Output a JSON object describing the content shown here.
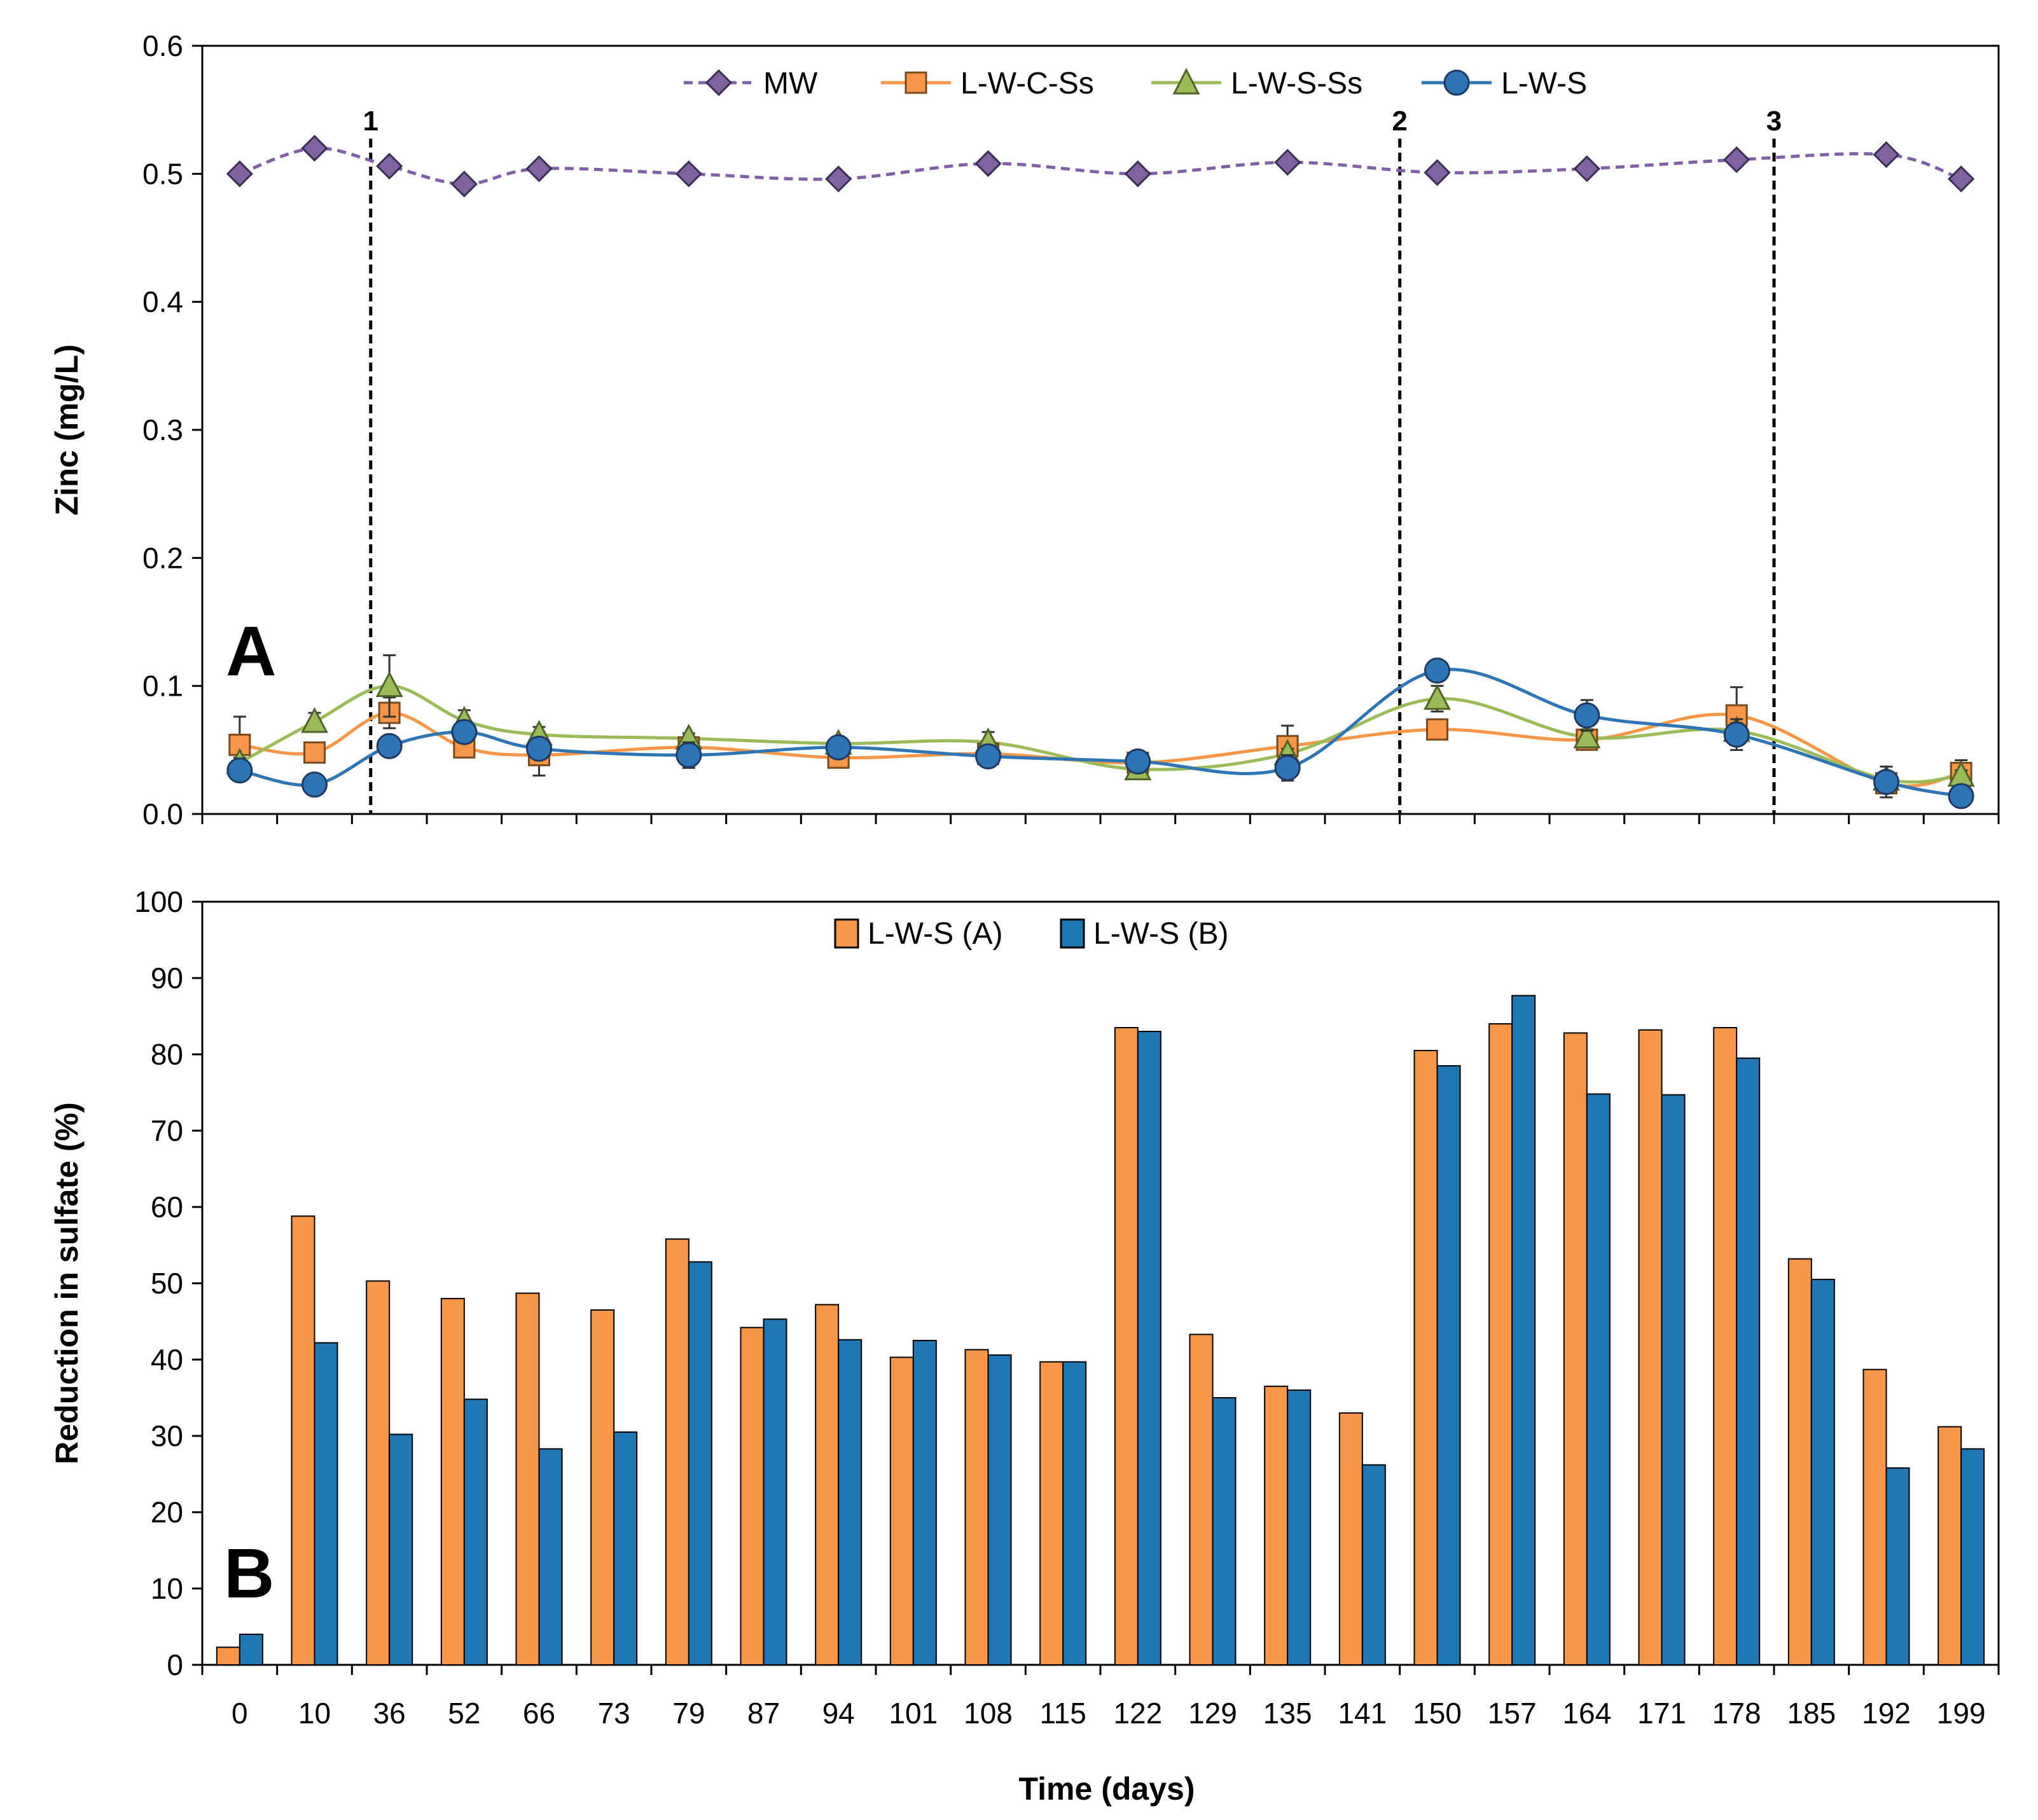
{
  "chart_data": [
    {
      "panel": "A",
      "type": "line",
      "xlabel": "",
      "ylabel": "Zinc (mg/L)",
      "ylim": [
        0,
        0.6
      ],
      "yticks": [
        "0.0",
        "0.1",
        "0.2",
        "0.3",
        "0.4",
        "0.5",
        "0.6"
      ],
      "categories": [
        "0",
        "10",
        "36",
        "52",
        "66",
        "73",
        "79",
        "87",
        "94",
        "101",
        "108",
        "115",
        "122",
        "129",
        "135",
        "141",
        "150",
        "157",
        "164",
        "171",
        "178",
        "185",
        "192",
        "199"
      ],
      "series": [
        {
          "name": "MW",
          "color": "#7f5fa5",
          "marker": "diamond",
          "dashed": true,
          "x": [
            0,
            1,
            2,
            3,
            4,
            6,
            8,
            10,
            12,
            14,
            16,
            18,
            20,
            22,
            23
          ],
          "values": [
            0.5,
            0.52,
            0.506,
            0.492,
            0.504,
            0.5,
            0.496,
            0.508,
            0.5,
            0.509,
            0.501,
            0.504,
            0.511,
            0.515,
            0.496
          ]
        },
        {
          "name": "L-W-C-Ss",
          "color": "#f79646",
          "marker": "square",
          "dashed": false,
          "x": [
            0,
            1,
            2,
            3,
            4,
            6,
            8,
            10,
            12,
            14,
            16,
            18,
            20,
            22,
            23
          ],
          "values": [
            0.054,
            0.048,
            0.079,
            0.052,
            0.046,
            0.052,
            0.044,
            0.047,
            0.04,
            0.053,
            0.066,
            0.058,
            0.077,
            0.024,
            0.032
          ],
          "errors": [
            0.022,
            0.004,
            0.012,
            0.005,
            0.016,
            0.004,
            0.004,
            0.004,
            0.003,
            0.016,
            0.006,
            0.005,
            0.022,
            0.005,
            0.01
          ]
        },
        {
          "name": "L-W-S-Ss",
          "color": "#9bbb59",
          "marker": "triangle",
          "dashed": false,
          "x": [
            0,
            1,
            2,
            3,
            4,
            6,
            8,
            10,
            12,
            14,
            16,
            18,
            20,
            22,
            23
          ],
          "values": [
            0.04,
            0.072,
            0.1,
            0.073,
            0.062,
            0.059,
            0.055,
            0.056,
            0.035,
            0.047,
            0.09,
            0.06,
            0.065,
            0.027,
            0.03
          ],
          "errors": [
            0.004,
            0.007,
            0.024,
            0.008,
            0.006,
            0.004,
            0.004,
            0.008,
            0.004,
            0.004,
            0.01,
            0.006,
            0.006,
            0.004,
            0.004
          ]
        },
        {
          "name": "L-W-S",
          "color": "#2e75b6",
          "marker": "circle",
          "dashed": false,
          "x": [
            0,
            1,
            2,
            3,
            4,
            6,
            8,
            10,
            12,
            14,
            16,
            18,
            20,
            22,
            23
          ],
          "values": [
            0.034,
            0.023,
            0.053,
            0.064,
            0.051,
            0.046,
            0.052,
            0.045,
            0.041,
            0.036,
            0.112,
            0.077,
            0.062,
            0.025,
            0.014
          ],
          "errors": [
            0.004,
            0.002,
            0.004,
            0.005,
            0.004,
            0.01,
            0.004,
            0.004,
            0.004,
            0.01,
            0.006,
            0.012,
            0.012,
            0.012,
            0.004
          ]
        }
      ],
      "vertical_lines": [
        {
          "label": "1",
          "at": 1.75
        },
        {
          "label": "2",
          "at": 15.5
        },
        {
          "label": "3",
          "at": 20.5
        }
      ],
      "panel_label": "A",
      "legend": "top-center"
    },
    {
      "panel": "B",
      "type": "bar",
      "xlabel": "Time (days)",
      "ylabel": "Reduction in sulfate (%)",
      "ylim": [
        0,
        100
      ],
      "yticks": [
        "0",
        "10",
        "20",
        "30",
        "40",
        "50",
        "60",
        "70",
        "80",
        "90",
        "100"
      ],
      "categories": [
        "0",
        "10",
        "36",
        "52",
        "66",
        "73",
        "79",
        "87",
        "94",
        "101",
        "108",
        "115",
        "122",
        "129",
        "135",
        "141",
        "150",
        "157",
        "164",
        "171",
        "178",
        "185",
        "192",
        "199"
      ],
      "series": [
        {
          "name": "L-W-S (A)",
          "color": "#f79646",
          "values": [
            2.3,
            58.8,
            50.3,
            48.0,
            48.7,
            46.5,
            55.8,
            44.2,
            47.2,
            40.3,
            41.3,
            39.7,
            83.5,
            43.3,
            36.5,
            33.0,
            80.5,
            84.0,
            82.8,
            83.2,
            83.5,
            53.2,
            38.7,
            31.2
          ]
        },
        {
          "name": "L-W-S (B)",
          "color": "#1f77b4",
          "values": [
            4.0,
            42.2,
            30.2,
            34.8,
            28.3,
            30.5,
            52.8,
            45.3,
            42.6,
            42.5,
            40.6,
            39.7,
            83.0,
            35.0,
            36.0,
            26.2,
            78.5,
            87.7,
            74.8,
            74.7,
            79.5,
            50.5,
            25.8,
            28.3
          ]
        }
      ],
      "panel_label": "B",
      "legend": "top-center"
    }
  ]
}
